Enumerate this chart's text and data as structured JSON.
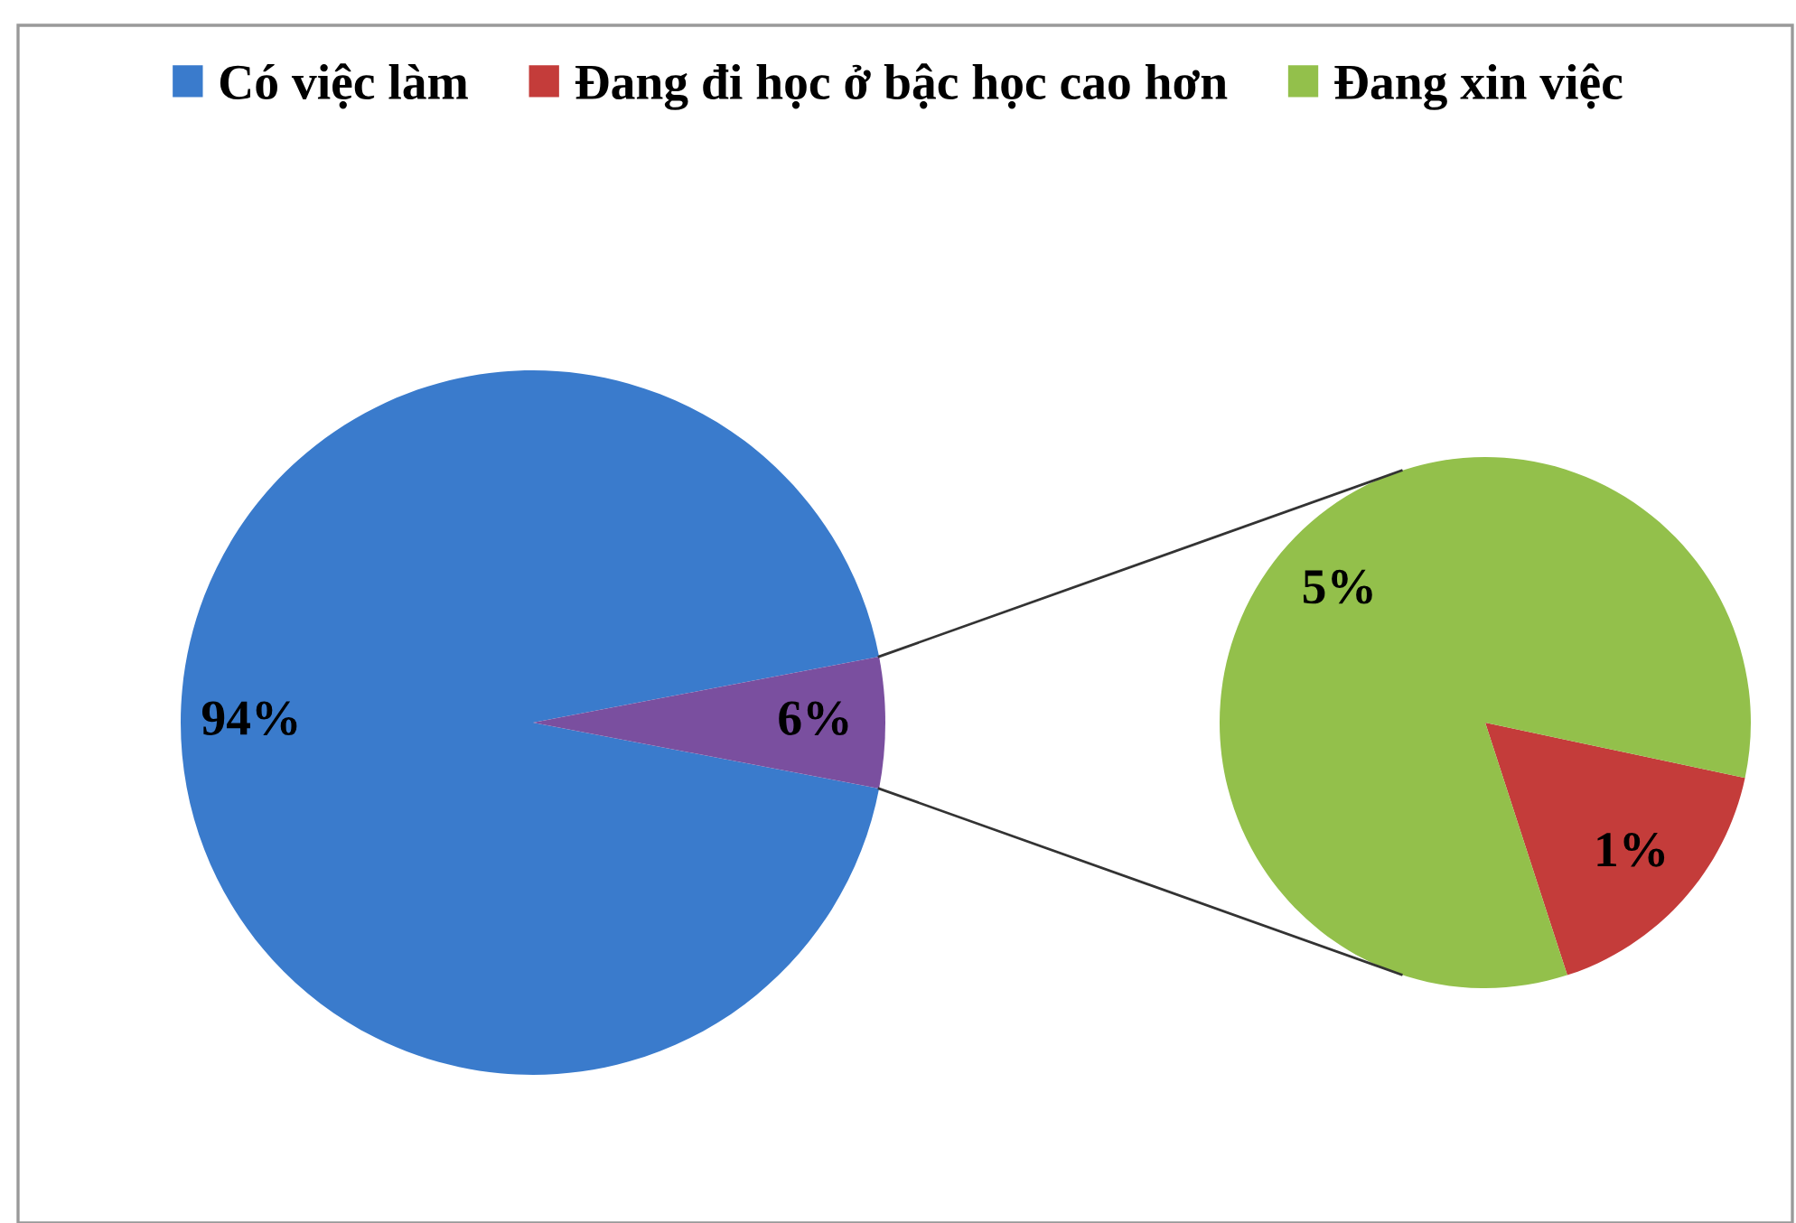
{
  "chart_data": [
    {
      "type": "pie",
      "categories": [
        "Có việc làm",
        null
      ],
      "values": [
        94,
        6
      ],
      "colors": [
        "#3a7bcc",
        "#7a4f9f"
      ],
      "value_labels": [
        "94%",
        "6%"
      ],
      "legend": "top"
    },
    {
      "type": "pie",
      "categories": [
        "Đang đi học ở bậc học cao hơn",
        "Đang xin việc"
      ],
      "values": [
        1,
        5
      ],
      "colors": [
        "#c43c3a",
        "#93c04b"
      ],
      "value_labels": [
        "1%",
        "5%"
      ],
      "legend": "top"
    }
  ]
}
